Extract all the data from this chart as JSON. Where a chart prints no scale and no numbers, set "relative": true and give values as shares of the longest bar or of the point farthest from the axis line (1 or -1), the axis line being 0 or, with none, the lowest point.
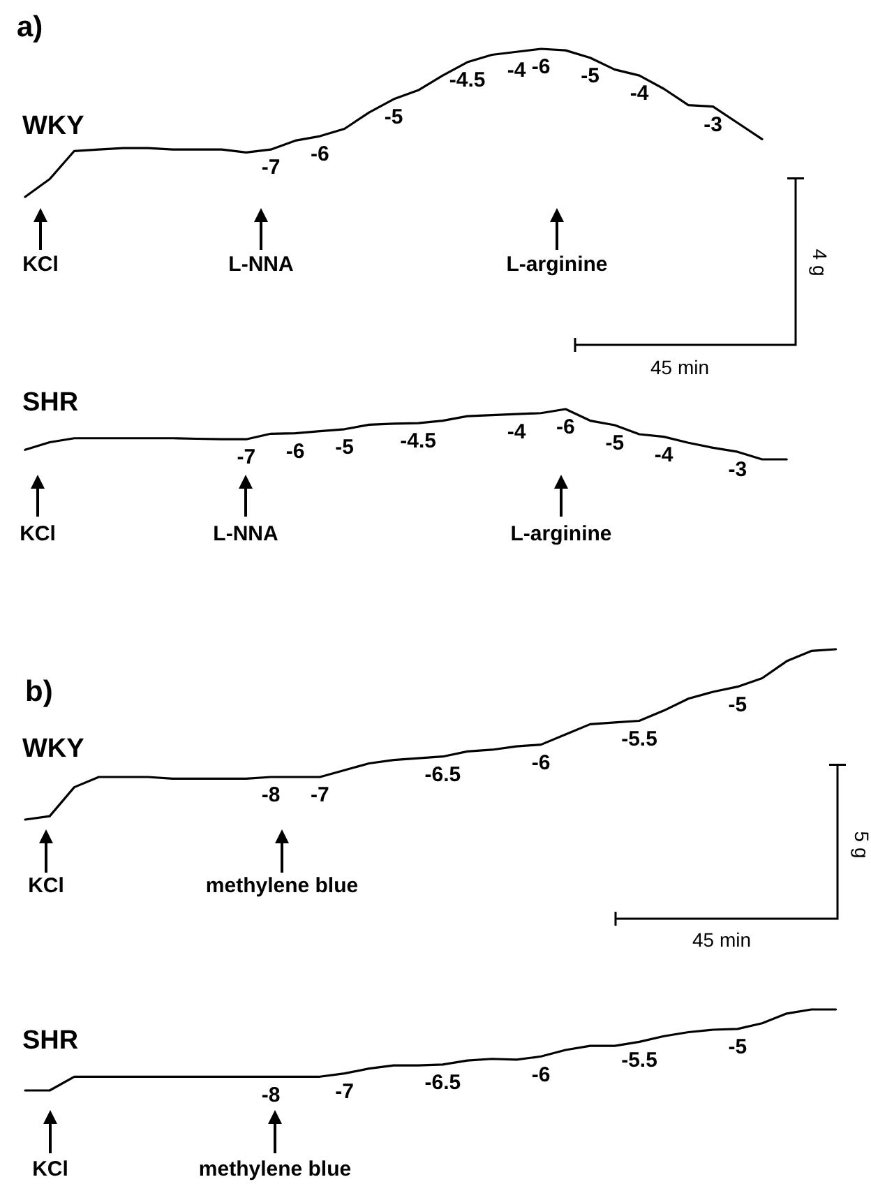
{
  "chart_data": [
    {
      "type": "line",
      "title": "a)",
      "relative": true,
      "marker": "none",
      "line_style": "solid",
      "legend": false,
      "categories": [
        null,
        null,
        null,
        null,
        null,
        null,
        null,
        null,
        null,
        null,
        null,
        null,
        null,
        null,
        null,
        null,
        null,
        null,
        null,
        null,
        null,
        null,
        null,
        null,
        null,
        null,
        null,
        null,
        null,
        null,
        null
      ],
      "series": [
        {
          "name": "WKY",
          "color": "#000000",
          "values": [
            0,
            0.12,
            0.31,
            0.32,
            0.33,
            0.33,
            0.32,
            0.32,
            0.32,
            0.3,
            0.32,
            0.38,
            0.41,
            0.46,
            0.57,
            0.66,
            0.72,
            0.82,
            0.91,
            0.96,
            0.98,
            1,
            0.99,
            0.94,
            0.86,
            0.82,
            0.73,
            0.62,
            0.61,
            0.5,
            0.39
          ]
        }
      ],
      "annotations": [
        "-7",
        "-6",
        "-5",
        "-4.5",
        "-4",
        "-6",
        "-5",
        "-4",
        "-3",
        "KCl",
        "L-NNA",
        "L-arginine",
        "4 g",
        "45 min"
      ]
    },
    {
      "type": "line",
      "relative": true,
      "marker": "none",
      "line_style": "solid",
      "legend": false,
      "categories": [
        null,
        null,
        null,
        null,
        null,
        null,
        null,
        null,
        null,
        null,
        null,
        null,
        null,
        null,
        null,
        null,
        null,
        null,
        null,
        null,
        null,
        null,
        null,
        null,
        null,
        null,
        null,
        null,
        null,
        null,
        null,
        null
      ],
      "series": [
        {
          "name": "SHR",
          "color": "#000000",
          "values": [
            0.19,
            0.34,
            0.42,
            0.42,
            0.42,
            0.42,
            0.42,
            0.41,
            0.4,
            0.4,
            0.51,
            0.52,
            0.56,
            0.6,
            0.69,
            0.71,
            0.72,
            0.77,
            0.86,
            0.88,
            0.9,
            0.92,
            1,
            0.77,
            0.68,
            0.5,
            0.45,
            0.33,
            0.23,
            0.15,
            0,
            0
          ]
        }
      ],
      "annotations": [
        "-7",
        "-6",
        "-5",
        "-4.5",
        "-4",
        "-6",
        "-5",
        "-4",
        "-3",
        "KCl",
        "L-NNA",
        "L-arginine"
      ]
    },
    {
      "type": "line",
      "title": "b)",
      "relative": true,
      "marker": "none",
      "line_style": "solid",
      "legend": false,
      "categories": [
        null,
        null,
        null,
        null,
        null,
        null,
        null,
        null,
        null,
        null,
        null,
        null,
        null,
        null,
        null,
        null,
        null,
        null,
        null,
        null,
        null,
        null,
        null,
        null,
        null,
        null,
        null,
        null,
        null,
        null,
        null,
        null,
        null,
        null
      ],
      "series": [
        {
          "name": "WKY",
          "color": "#000000",
          "values": [
            0,
            0.02,
            0.19,
            0.25,
            0.25,
            0.25,
            0.24,
            0.24,
            0.24,
            0.24,
            0.25,
            0.25,
            0.25,
            0.29,
            0.33,
            0.35,
            0.36,
            0.37,
            0.4,
            0.41,
            0.43,
            0.44,
            0.5,
            0.56,
            0.57,
            0.58,
            0.64,
            0.71,
            0.75,
            0.78,
            0.83,
            0.93,
            0.99,
            1
          ]
        }
      ],
      "annotations": [
        "-8",
        "-7",
        "-6.5",
        "-6",
        "-5.5",
        "-5",
        "KCl",
        "methylene blue",
        "5 g",
        "45 min"
      ]
    },
    {
      "type": "line",
      "relative": true,
      "marker": "none",
      "line_style": "solid",
      "legend": false,
      "categories": [
        null,
        null,
        null,
        null,
        null,
        null,
        null,
        null,
        null,
        null,
        null,
        null,
        null,
        null,
        null,
        null,
        null,
        null,
        null,
        null,
        null,
        null,
        null,
        null,
        null,
        null,
        null,
        null,
        null,
        null,
        null,
        null,
        null,
        null
      ],
      "series": [
        {
          "name": "SHR",
          "color": "#000000",
          "values": [
            0,
            0,
            0.17,
            0.17,
            0.17,
            0.17,
            0.17,
            0.17,
            0.17,
            0.17,
            0.17,
            0.17,
            0.17,
            0.21,
            0.27,
            0.31,
            0.31,
            0.32,
            0.37,
            0.39,
            0.38,
            0.42,
            0.5,
            0.55,
            0.55,
            0.6,
            0.67,
            0.72,
            0.75,
            0.76,
            0.83,
            0.95,
            1,
            1
          ]
        }
      ],
      "annotations": [
        "-8",
        "-7",
        "-6.5",
        "-6",
        "-5.5",
        "-5",
        "KCl",
        "methylene blue"
      ]
    }
  ]
}
